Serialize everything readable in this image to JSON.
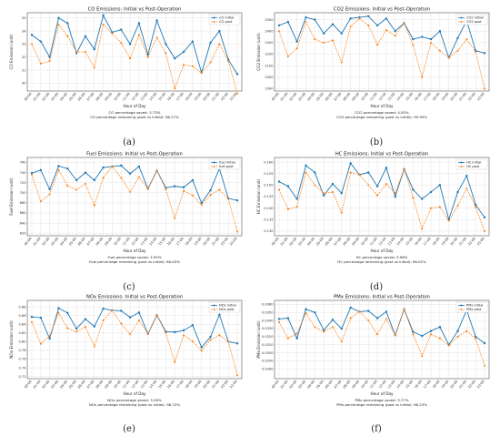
{
  "colors": {
    "initial": "#1f77b4",
    "post": "#ff7f0e",
    "grid": "#dddddd",
    "axis": "#333333"
  },
  "x_categories": [
    "00:00",
    "01:00",
    "02:00",
    "03:00",
    "04:00",
    "05:00",
    "06:00",
    "07:00",
    "08:00",
    "09:00",
    "10:00",
    "11:00",
    "12:00",
    "13:00",
    "14:00",
    "15:00",
    "16:00",
    "17:00",
    "18:00",
    "19:00",
    "20:00",
    "21:00",
    "22:00",
    "23:00"
  ],
  "chart_data": [
    {
      "type": "line",
      "title": "CO Emissions: Initial vs Post-Operation",
      "xlabel": "Hour of Day",
      "ylabel": "CO Emission (unit)",
      "categories": [
        "00:00",
        "01:00",
        "02:00",
        "03:00",
        "04:00",
        "05:00",
        "06:00",
        "07:00",
        "08:00",
        "09:00",
        "10:00",
        "11:00",
        "12:00",
        "13:00",
        "14:00",
        "15:00",
        "16:00",
        "17:00",
        "18:00",
        "19:00",
        "20:00",
        "21:00",
        "22:00",
        "23:00"
      ],
      "ylim": [
        29.4,
        35.4
      ],
      "yticks": [
        30,
        31,
        32,
        33,
        34,
        35
      ],
      "series": [
        {
          "name": "CO initial",
          "values": [
            33.7,
            33.2,
            32.0,
            35.0,
            34.6,
            32.3,
            33.6,
            32.6,
            35.2,
            33.9,
            34.1,
            33.0,
            34.6,
            32.2,
            34.8,
            33.0,
            31.9,
            32.4,
            33.2,
            30.8,
            33.1,
            34.0,
            31.8,
            30.7
          ]
        },
        {
          "name": "CO post",
          "values": [
            33.0,
            31.5,
            31.7,
            34.5,
            33.6,
            32.4,
            32.4,
            31.2,
            34.5,
            33.8,
            33.1,
            31.9,
            33.7,
            32.0,
            33.5,
            32.3,
            29.6,
            31.4,
            31.3,
            30.8,
            31.6,
            33.0,
            31.7,
            29.2
          ]
        }
      ],
      "legend": "top-right",
      "grid": true,
      "notes": [
        "CO percentage saved: 3.73%",
        "CO percentage remaining (post vs initial): 96.27%"
      ],
      "caption": "(a)"
    },
    {
      "type": "line",
      "title": "CO2 Emissions: Initial vs Post-Operation",
      "xlabel": "Hour of Day",
      "ylabel": "CO2 Emission (unit)",
      "categories": [
        "00:00",
        "01:00",
        "02:00",
        "03:00",
        "04:00",
        "05:00",
        "06:00",
        "07:00",
        "08:00",
        "09:00",
        "10:00",
        "11:00",
        "12:00",
        "13:00",
        "14:00",
        "15:00",
        "16:00",
        "17:00",
        "18:00",
        "19:00",
        "20:00",
        "21:00",
        "22:00",
        "23:00"
      ],
      "ylim": [
        1880,
        2560
      ],
      "yticks": [
        1900,
        2000,
        2100,
        2200,
        2300,
        2400,
        2500
      ],
      "series": [
        {
          "name": "CO2 initial",
          "values": [
            2450,
            2480,
            2310,
            2520,
            2500,
            2380,
            2460,
            2380,
            2510,
            2520,
            2530,
            2450,
            2510,
            2400,
            2470,
            2330,
            2350,
            2330,
            2400,
            2170,
            2340,
            2490,
            2230,
            2210
          ]
        },
        {
          "name": "CO2 post",
          "values": [
            2400,
            2180,
            2250,
            2480,
            2330,
            2300,
            2320,
            2130,
            2440,
            2510,
            2450,
            2280,
            2410,
            2360,
            2470,
            2280,
            2000,
            2300,
            2230,
            2170,
            2230,
            2330,
            2220,
            1900
          ]
        }
      ],
      "legend": "top-right",
      "grid": true,
      "notes": [
        "CO2 percentage saved: 4.05%",
        "CO2 percentage remaining (post vs initial): 95.95%"
      ],
      "caption": "(b)"
    },
    {
      "type": "line",
      "title": "Fuel Emissions: Initial vs Post-Operation",
      "xlabel": "Hour of Day",
      "ylabel": "Fuel Emission (unit)",
      "categories": [
        "00:00",
        "01:00",
        "02:00",
        "03:00",
        "04:00",
        "05:00",
        "06:00",
        "07:00",
        "08:00",
        "09:00",
        "10:00",
        "11:00",
        "12:00",
        "13:00",
        "14:00",
        "15:00",
        "16:00",
        "17:00",
        "18:00",
        "19:00",
        "20:00",
        "21:00",
        "22:00",
        "23:00"
      ],
      "ylim": [
        615,
        770
      ],
      "yticks": [
        620,
        640,
        660,
        680,
        700,
        720,
        740,
        760
      ],
      "series": [
        {
          "name": "fuel initial",
          "values": [
            739,
            745,
            707,
            753,
            748,
            725,
            740,
            725,
            750,
            752,
            754,
            738,
            752,
            708,
            744,
            710,
            713,
            711,
            725,
            680,
            705,
            748,
            689,
            685
          ]
        },
        {
          "name": "fuel post",
          "values": [
            736,
            683,
            697,
            745,
            714,
            706,
            718,
            675,
            730,
            752,
            730,
            702,
            731,
            708,
            744,
            707,
            650,
            704,
            695,
            676,
            696,
            706,
            688,
            623
          ]
        }
      ],
      "legend": "top-right",
      "grid": true,
      "notes": [
        "Fuel percentage saved: 3.95%",
        "Fuel percentage remaining (post vs initial): 96.05%"
      ],
      "caption": "(c)"
    },
    {
      "type": "line",
      "title": "HC Emissions: Initial vs Post-Operation",
      "xlabel": "Hour of Day",
      "ylabel": "HC Emission (unit)",
      "categories": [
        "00:00",
        "01:00",
        "02:00",
        "03:00",
        "04:00",
        "05:00",
        "06:00",
        "07:00",
        "08:00",
        "09:00",
        "10:00",
        "11:00",
        "12:00",
        "13:00",
        "14:00",
        "15:00",
        "16:00",
        "17:00",
        "18:00",
        "19:00",
        "20:00",
        "21:00",
        "22:00",
        "23:00"
      ],
      "ylim": [
        0.128,
        0.162
      ],
      "yticks": [
        0.13,
        0.135,
        0.14,
        0.145,
        0.15,
        0.155,
        0.16
      ],
      "series": [
        {
          "name": "HC initial",
          "values": [
            0.1515,
            0.1495,
            0.144,
            0.1585,
            0.1555,
            0.1455,
            0.1505,
            0.1465,
            0.1595,
            0.1545,
            0.1555,
            0.1495,
            0.1575,
            0.145,
            0.157,
            0.148,
            0.144,
            0.147,
            0.15,
            0.135,
            0.147,
            0.154,
            0.1415,
            0.136
          ]
        },
        {
          "name": "HC post",
          "values": [
            0.148,
            0.1395,
            0.1405,
            0.1555,
            0.15,
            0.1465,
            0.147,
            0.138,
            0.1555,
            0.1545,
            0.15,
            0.1455,
            0.1505,
            0.1465,
            0.157,
            0.1445,
            0.131,
            0.14,
            0.1405,
            0.1345,
            0.141,
            0.1485,
            0.1405,
            0.13
          ]
        }
      ],
      "legend": "top-right",
      "grid": true,
      "notes": [
        "HC percentage saved: 3.98%",
        "HC percentage remaining (post vs initial): 96.02%"
      ],
      "caption": "(d)"
    },
    {
      "type": "line",
      "title": "NOx Emissions: Initial vs Post-Operation",
      "xlabel": "Hour of Day",
      "ylabel": "NOx Emission (unit)",
      "categories": [
        "00:00",
        "01:00",
        "02:00",
        "03:00",
        "04:00",
        "05:00",
        "06:00",
        "07:00",
        "08:00",
        "09:00",
        "10:00",
        "11:00",
        "12:00",
        "13:00",
        "14:00",
        "15:00",
        "16:00",
        "17:00",
        "18:00",
        "19:00",
        "20:00",
        "21:00",
        "22:00",
        "23:00"
      ],
      "ylim": [
        0.715,
        0.895
      ],
      "yticks": [
        0.72,
        0.74,
        0.76,
        0.78,
        0.8,
        0.82,
        0.84,
        0.86,
        0.88
      ],
      "series": [
        {
          "name": "NOx initial",
          "values": [
            0.857,
            0.855,
            0.807,
            0.877,
            0.866,
            0.83,
            0.852,
            0.835,
            0.876,
            0.872,
            0.871,
            0.856,
            0.867,
            0.818,
            0.861,
            0.823,
            0.822,
            0.826,
            0.838,
            0.787,
            0.811,
            0.862,
            0.8,
            0.796
          ]
        },
        {
          "name": "NOx post",
          "values": [
            0.845,
            0.795,
            0.813,
            0.866,
            0.831,
            0.823,
            0.834,
            0.789,
            0.849,
            0.872,
            0.842,
            0.817,
            0.849,
            0.818,
            0.861,
            0.82,
            0.753,
            0.815,
            0.801,
            0.779,
            0.804,
            0.815,
            0.8,
            0.723
          ]
        }
      ],
      "legend": "top-right",
      "grid": true,
      "notes": [
        "NOx percentage saved: 3.28%",
        "NOx percentage remaining (post vs initial): 96.72%"
      ],
      "caption": "(e)"
    },
    {
      "type": "line",
      "title": "PMx Emissions: Initial vs Post-Operation",
      "xlabel": "Hour of Day",
      "ylabel": "PMx Emission (unit)",
      "categories": [
        "00:00",
        "01:00",
        "02:00",
        "03:00",
        "04:00",
        "05:00",
        "06:00",
        "07:00",
        "08:00",
        "09:00",
        "10:00",
        "11:00",
        "12:00",
        "13:00",
        "14:00",
        "15:00",
        "16:00",
        "17:00",
        "18:00",
        "19:00",
        "20:00",
        "21:00",
        "22:00",
        "23:00"
      ],
      "ylim": [
        0.0268,
        0.0365
      ],
      "yticks": [
        0.028,
        0.029,
        0.03,
        0.031,
        0.032,
        0.033,
        0.034,
        0.035,
        0.036
      ],
      "series": [
        {
          "name": "PMx initial",
          "values": [
            0.0342,
            0.0343,
            0.0318,
            0.0354,
            0.035,
            0.0328,
            0.0341,
            0.033,
            0.0356,
            0.0351,
            0.0352,
            0.0343,
            0.0351,
            0.0322,
            0.0354,
            0.0326,
            0.0321,
            0.0327,
            0.0332,
            0.031,
            0.0327,
            0.0353,
            0.032,
            0.0312
          ]
        },
        {
          "name": "PMx post",
          "values": [
            0.0338,
            0.0318,
            0.0324,
            0.0349,
            0.0332,
            0.0326,
            0.0332,
            0.0314,
            0.0343,
            0.0351,
            0.034,
            0.0323,
            0.0342,
            0.0322,
            0.0354,
            0.0323,
            0.0296,
            0.0323,
            0.0318,
            0.0309,
            0.032,
            0.0327,
            0.0318,
            0.0284
          ]
        }
      ],
      "legend": "top-right",
      "grid": true,
      "notes": [
        "PMx percentage saved: 3.77%",
        "PMx percentage remaining (post vs initial): 96.23%"
      ],
      "caption": "(f)"
    }
  ]
}
